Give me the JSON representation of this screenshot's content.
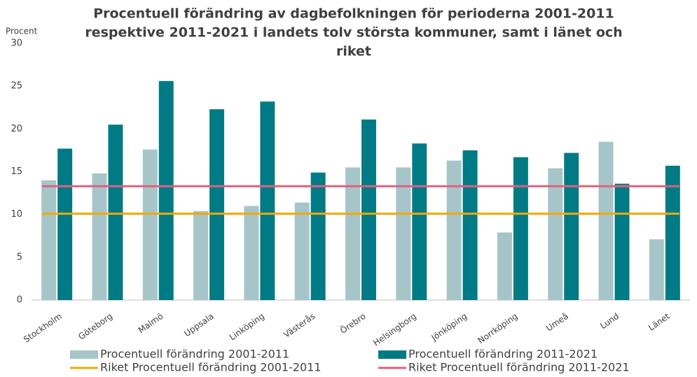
{
  "chart_data": {
    "type": "bar",
    "title": [
      "Procentuell förändring av dagbefolkningen för perioderna 2001-2011",
      "respektive 2011-2021 i landets tolv största kommuner, samt i länet och",
      "riket"
    ],
    "y_label": "Procent",
    "categories": [
      "Stockholm",
      "Göteborg",
      "Malmö",
      "Uppsala",
      "Linköping",
      "Västerås",
      "Örebro",
      "Helsingborg",
      "Jönköping",
      "Norrköping",
      "Umeå",
      "Lund",
      "Länet"
    ],
    "series": [
      {
        "name": "Procentuell förändring 2001-2011",
        "color": "#a6c5c9",
        "values": [
          14.0,
          14.8,
          17.6,
          10.4,
          11.0,
          11.4,
          15.5,
          15.5,
          16.3,
          7.9,
          15.4,
          18.5,
          7.1
        ]
      },
      {
        "name": "Procentuell förändring 2011-2021",
        "color": "#007b85",
        "values": [
          17.7,
          20.5,
          25.6,
          22.3,
          23.2,
          14.9,
          21.1,
          18.3,
          17.5,
          16.7,
          17.2,
          13.6,
          15.7
        ]
      }
    ],
    "reference_lines": [
      {
        "name": "Riket Procentuell förändring 2001-2011",
        "color": "#f2a900",
        "value": 10.1
      },
      {
        "name": "Riket Procentuell förändring 2011-2021",
        "color": "#e0607e",
        "value": 13.3
      }
    ],
    "ylim": [
      0,
      30
    ],
    "yticks": [
      0,
      5,
      10,
      15,
      20,
      25,
      30
    ],
    "grid": false
  }
}
